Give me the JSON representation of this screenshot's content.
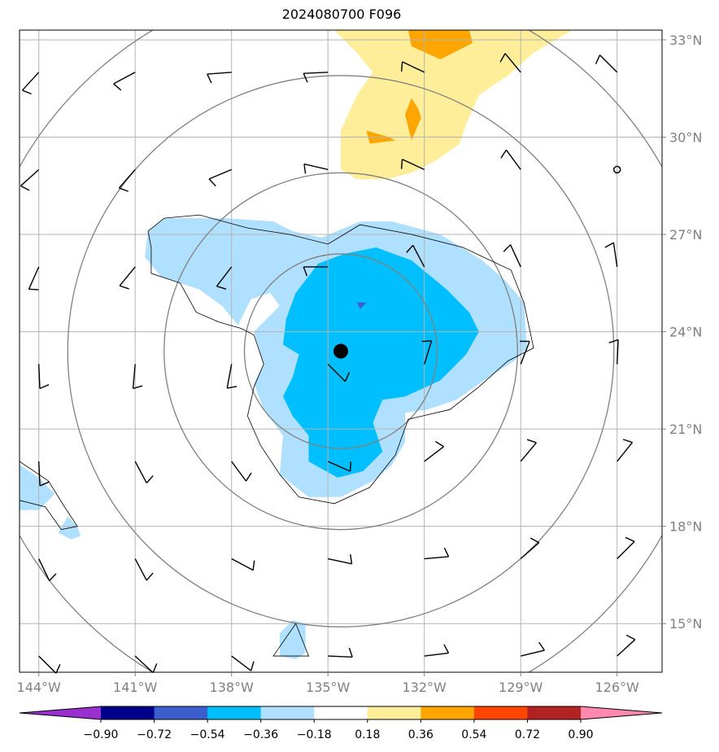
{
  "chart_data": {
    "type": "heatmap",
    "title": "2024080700 F096",
    "x_tick_labels": [
      "144°W",
      "141°W",
      "138°W",
      "135°W",
      "132°W",
      "129°W",
      "126°W"
    ],
    "x_ticks": [
      -144,
      -141,
      -138,
      -135,
      -132,
      -129,
      -126
    ],
    "y_tick_labels": [
      "15°N",
      "18°N",
      "21°N",
      "24°N",
      "27°N",
      "30°N",
      "33°N"
    ],
    "y_ticks": [
      15,
      18,
      21,
      24,
      27,
      30,
      33
    ],
    "xlim": [
      -144.6,
      -124.6
    ],
    "ylim": [
      13.5,
      33.3
    ],
    "center": {
      "lon": -134.6,
      "lat": 23.4
    },
    "range_ring_radii_deg": [
      3,
      5.5,
      8.5,
      11.5
    ],
    "colorbar": {
      "tick_labels": [
        "−0.90",
        "−0.72",
        "−0.54",
        "−0.36",
        "−0.18",
        "0.18",
        "0.36",
        "0.54",
        "0.72",
        "0.90"
      ],
      "colors": [
        "#9a2fd0",
        "#00008b",
        "#3a5fcd",
        "#00bfff",
        "#b0e0ff",
        "#ffffff",
        "#ffee99",
        "#ffa500",
        "#ff4500",
        "#b22222",
        "#ff88b0"
      ]
    },
    "regions": [
      {
        "level": "-0.36 to -0.18",
        "color": "#b0e0ff",
        "points": [
          [
            -140.6,
            27.1
          ],
          [
            -140.1,
            27.5
          ],
          [
            -138.2,
            27.5
          ],
          [
            -136.7,
            27.4
          ],
          [
            -136.1,
            27.1
          ],
          [
            -135.2,
            26.9
          ],
          [
            -134.0,
            27.4
          ],
          [
            -133.0,
            27.4
          ],
          [
            -131.5,
            27.0
          ],
          [
            -130.2,
            26.2
          ],
          [
            -129.5,
            25.6
          ],
          [
            -128.9,
            24.9
          ],
          [
            -128.8,
            23.5
          ],
          [
            -129.2,
            23.1
          ],
          [
            -130.0,
            22.6
          ],
          [
            -131.0,
            21.9
          ],
          [
            -131.9,
            21.6
          ],
          [
            -132.6,
            21.5
          ],
          [
            -132.6,
            20.6
          ],
          [
            -133.0,
            19.9
          ],
          [
            -133.6,
            19.4
          ],
          [
            -134.6,
            18.9
          ],
          [
            -135.6,
            18.9
          ],
          [
            -136.5,
            19.6
          ],
          [
            -136.4,
            20.8
          ],
          [
            -137.0,
            21.6
          ],
          [
            -137.3,
            22.4
          ],
          [
            -137.0,
            23.0
          ],
          [
            -137.3,
            24.0
          ],
          [
            -136.5,
            24.8
          ],
          [
            -136.8,
            25.2
          ],
          [
            -137.4,
            25.0
          ],
          [
            -137.8,
            24.2
          ],
          [
            -138.3,
            24.8
          ],
          [
            -139.0,
            25.3
          ],
          [
            -140.2,
            25.7
          ],
          [
            -140.7,
            26.3
          ]
        ]
      },
      {
        "level": "-0.54 to -0.36",
        "color": "#00bfff",
        "points": [
          [
            -135.3,
            26.1
          ],
          [
            -134.5,
            26.4
          ],
          [
            -133.5,
            26.6
          ],
          [
            -132.4,
            26.2
          ],
          [
            -131.3,
            25.3
          ],
          [
            -130.6,
            24.6
          ],
          [
            -130.3,
            24.0
          ],
          [
            -130.7,
            23.3
          ],
          [
            -131.5,
            22.5
          ],
          [
            -132.6,
            22.0
          ],
          [
            -133.3,
            21.9
          ],
          [
            -133.6,
            21.2
          ],
          [
            -133.3,
            20.3
          ],
          [
            -133.9,
            19.7
          ],
          [
            -134.7,
            19.5
          ],
          [
            -135.6,
            20.0
          ],
          [
            -135.6,
            20.8
          ],
          [
            -136.1,
            21.4
          ],
          [
            -136.4,
            22.0
          ],
          [
            -136.1,
            22.6
          ],
          [
            -135.9,
            23.3
          ],
          [
            -136.4,
            23.6
          ],
          [
            -136.3,
            24.4
          ],
          [
            -136.0,
            25.2
          ]
        ]
      },
      {
        "level": "-0.36 to -0.18",
        "color": "#b0e0ff",
        "points": [
          [
            -144.6,
            19.9
          ],
          [
            -144.0,
            19.5
          ],
          [
            -143.5,
            19.0
          ],
          [
            -144.0,
            18.5
          ],
          [
            -144.6,
            18.5
          ]
        ]
      },
      {
        "level": "-0.36 to -0.18",
        "color": "#b0e0ff",
        "points": [
          [
            -143.1,
            18.3
          ],
          [
            -142.8,
            18.0
          ],
          [
            -142.7,
            17.7
          ],
          [
            -143.0,
            17.6
          ],
          [
            -143.4,
            17.8
          ]
        ]
      },
      {
        "level": "-0.36 to -0.18",
        "color": "#b0e0ff",
        "points": [
          [
            -136.1,
            15.1
          ],
          [
            -135.7,
            15.0
          ],
          [
            -135.7,
            14.1
          ],
          [
            -136.0,
            13.9
          ],
          [
            -136.5,
            14.0
          ],
          [
            -136.5,
            14.7
          ]
        ]
      },
      {
        "level": "0.18 to 0.36",
        "color": "#ffee99",
        "points": [
          [
            -134.8,
            33.3
          ],
          [
            -127.4,
            33.3
          ],
          [
            -128.6,
            32.6
          ],
          [
            -129.4,
            31.9
          ],
          [
            -130.3,
            31.3
          ],
          [
            -130.7,
            30.4
          ],
          [
            -130.9,
            29.8
          ],
          [
            -131.6,
            29.3
          ],
          [
            -132.4,
            28.9
          ],
          [
            -133.2,
            28.7
          ],
          [
            -134.1,
            28.7
          ],
          [
            -134.6,
            29.0
          ],
          [
            -134.6,
            30.2
          ],
          [
            -134.1,
            31.3
          ],
          [
            -133.6,
            32.0
          ],
          [
            -134.1,
            32.6
          ]
        ]
      },
      {
        "level": "0.36 to 0.54",
        "color": "#ffa500",
        "points": [
          [
            -132.5,
            33.3
          ],
          [
            -130.6,
            33.3
          ],
          [
            -130.5,
            32.9
          ],
          [
            -131.5,
            32.4
          ],
          [
            -132.4,
            32.8
          ]
        ]
      },
      {
        "level": "0.36 to 0.54",
        "color": "#ffa500",
        "points": [
          [
            -132.4,
            31.2
          ],
          [
            -132.2,
            30.9
          ],
          [
            -132.1,
            30.6
          ],
          [
            -132.4,
            29.9
          ],
          [
            -132.6,
            30.7
          ]
        ]
      },
      {
        "level": "0.36 to 0.54",
        "color": "#ffa500",
        "points": [
          [
            -133.8,
            30.2
          ],
          [
            -133.1,
            30.0
          ],
          [
            -132.9,
            29.9
          ],
          [
            -133.7,
            29.8
          ]
        ]
      },
      {
        "level": "-0.72 to -0.54",
        "color": "#3a5fcd",
        "points": [
          [
            -134.1,
            24.9
          ],
          [
            -133.8,
            24.9
          ],
          [
            -134.0,
            24.7
          ]
        ]
      }
    ],
    "contour_line": [
      [
        -140.6,
        27.1
      ],
      [
        -140.1,
        27.5
      ],
      [
        -139.0,
        27.6
      ],
      [
        -137.5,
        27.2
      ],
      [
        -136.2,
        27.0
      ],
      [
        -135.0,
        26.7
      ],
      [
        -134.0,
        27.3
      ],
      [
        -132.4,
        27.0
      ],
      [
        -130.8,
        26.6
      ],
      [
        -129.3,
        25.9
      ],
      [
        -128.9,
        24.9
      ],
      [
        -128.6,
        23.5
      ],
      [
        -129.4,
        23.1
      ],
      [
        -130.3,
        22.3
      ],
      [
        -131.2,
        21.6
      ],
      [
        -132.5,
        21.3
      ],
      [
        -132.9,
        20.2
      ],
      [
        -133.7,
        19.2
      ],
      [
        -134.8,
        18.7
      ],
      [
        -135.9,
        18.9
      ],
      [
        -136.5,
        19.6
      ],
      [
        -137.1,
        20.5
      ],
      [
        -137.5,
        21.4
      ],
      [
        -137.3,
        22.3
      ],
      [
        -137.0,
        23.0
      ],
      [
        -137.3,
        23.9
      ],
      [
        -137.7,
        24.1
      ],
      [
        -138.4,
        24.3
      ],
      [
        -139.1,
        24.6
      ],
      [
        -139.6,
        25.5
      ],
      [
        -140.5,
        25.8
      ],
      [
        -140.5,
        26.6
      ],
      [
        -140.6,
        27.1
      ]
    ],
    "barb_grid": {
      "lons": [
        -144,
        -141,
        -138,
        -135,
        -132,
        -129,
        -126
      ],
      "lats": [
        14,
        17,
        20,
        23,
        26,
        29,
        32
      ]
    },
    "barb_calm_points": [
      [
        -126,
        29
      ]
    ]
  }
}
